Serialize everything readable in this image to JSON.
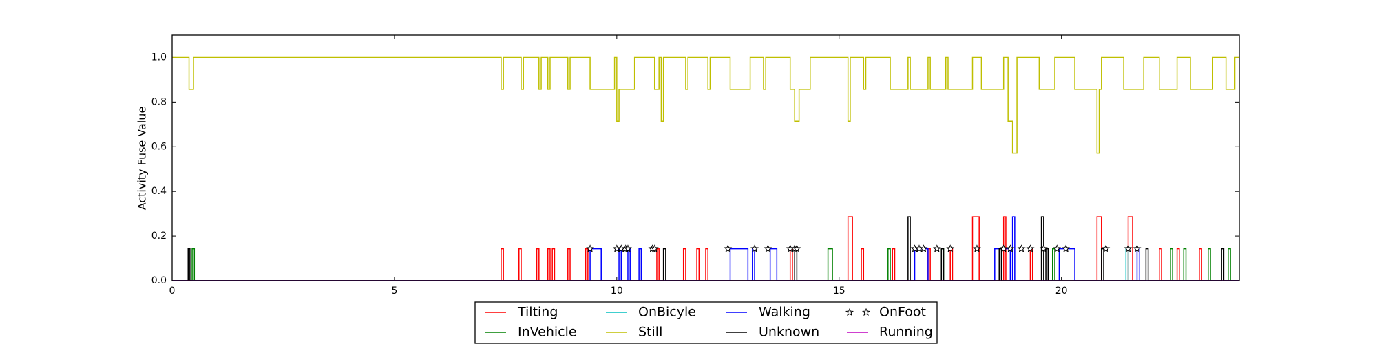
{
  "chart_data": {
    "type": "line",
    "drawstyle": "steps-post",
    "ylabel": "Activity Fuse Value",
    "xlim": [
      0,
      24
    ],
    "xticks": [
      0,
      5,
      10,
      15,
      20
    ],
    "ylim": [
      0,
      1.1
    ],
    "yticks": [
      {
        "value": 0,
        "label": "0.0"
      },
      {
        "value": 0.2,
        "label": "0.2"
      },
      {
        "value": 0.4,
        "label": "0.4"
      },
      {
        "value": 0.6,
        "label": "0.6"
      },
      {
        "value": 0.8,
        "label": "0.8"
      },
      {
        "value": 1,
        "label": "1.0"
      }
    ],
    "legend": "lower center",
    "series": [
      {
        "name": "Tilting",
        "color": "#ff0000",
        "x": [
          0,
          7.4,
          7.45,
          7.8,
          7.85,
          8.2,
          8.25,
          8.45,
          8.5,
          8.55,
          8.6,
          8.9,
          8.95,
          9.3,
          9.35,
          10.9,
          10.95,
          11.5,
          11.55,
          11.8,
          11.85,
          12.0,
          12.05,
          13.9,
          13.95,
          15.2,
          15.3,
          15.5,
          15.55,
          16.2,
          16.25,
          17.0,
          17.05,
          17.5,
          17.55,
          18.0,
          18.15,
          18.7,
          18.75,
          19.3,
          19.35,
          20.8,
          20.9,
          21.5,
          21.6,
          22.2,
          22.25,
          22.6,
          22.65,
          23.1,
          23.15,
          24
        ],
        "values": [
          0,
          0.143,
          0,
          0.143,
          0,
          0.143,
          0,
          0.143,
          0,
          0.143,
          0,
          0.143,
          0,
          0.143,
          0,
          0.143,
          0,
          0.143,
          0,
          0.143,
          0,
          0.143,
          0,
          0.143,
          0,
          0.286,
          0,
          0.143,
          0,
          0.143,
          0,
          0.143,
          0,
          0.143,
          0,
          0.286,
          0,
          0.286,
          0,
          0.143,
          0,
          0.286,
          0,
          0.286,
          0,
          0.143,
          0,
          0.143,
          0,
          0.143,
          0,
          0
        ]
      },
      {
        "name": "InVehicle",
        "color": "#008000",
        "x": [
          0,
          0.45,
          0.5,
          14.75,
          14.85,
          16.1,
          16.15,
          17.3,
          17.35,
          19.8,
          19.85,
          22.45,
          22.5,
          22.75,
          22.8,
          23.3,
          23.35,
          23.75,
          23.8,
          24
        ],
        "values": [
          0,
          0.143,
          0,
          0.143,
          0,
          0.143,
          0,
          0.143,
          0,
          0.143,
          0,
          0.143,
          0,
          0.143,
          0,
          0.143,
          0,
          0.143,
          0,
          0
        ]
      },
      {
        "name": "OnBicyle",
        "color": "#00bfbf",
        "x": [
          0,
          21.45,
          21.5,
          24
        ],
        "values": [
          0,
          0.143,
          0,
          0
        ]
      },
      {
        "name": "Still",
        "color": "#bfbf00",
        "x": [
          0,
          0.38,
          0.48,
          7.4,
          7.45,
          7.85,
          7.9,
          8.25,
          8.3,
          8.45,
          8.5,
          8.9,
          8.95,
          9.4,
          9.95,
          10.0,
          10.05,
          10.4,
          10.85,
          10.95,
          11.0,
          11.05,
          11.55,
          11.6,
          12.05,
          12.1,
          12.55,
          13.0,
          13.3,
          13.35,
          13.9,
          14.0,
          14.1,
          14.35,
          15.2,
          15.25,
          15.55,
          15.6,
          16.15,
          16.55,
          16.6,
          17.0,
          17.05,
          17.4,
          17.45,
          18.0,
          18.2,
          18.7,
          18.8,
          18.9,
          19.0,
          19.5,
          19.85,
          20.3,
          20.8,
          20.85,
          20.9,
          21.4,
          21.85,
          22.2,
          22.6,
          22.9,
          23.4,
          23.7,
          23.9,
          24
        ],
        "values": [
          1,
          0.857,
          1,
          0.857,
          1,
          0.857,
          1,
          0.857,
          1,
          0.857,
          1,
          0.857,
          1,
          0.857,
          1,
          0.714,
          0.857,
          1,
          0.857,
          1,
          0.714,
          1,
          0.857,
          1,
          0.857,
          1,
          0.857,
          1,
          0.857,
          1,
          0.857,
          0.714,
          0.857,
          1,
          0.714,
          1,
          0.857,
          1,
          0.857,
          1,
          0.857,
          1,
          0.857,
          1,
          0.857,
          1,
          0.857,
          1,
          0.714,
          0.571,
          1,
          0.857,
          1,
          0.857,
          0.571,
          0.857,
          1,
          0.857,
          1,
          0.857,
          1,
          0.857,
          1,
          0.857,
          1,
          1
        ]
      },
      {
        "name": "Walking",
        "color": "#0000ff",
        "x": [
          0,
          9.4,
          9.65,
          10.05,
          10.1,
          10.25,
          10.3,
          10.5,
          10.55,
          12.55,
          12.95,
          13.05,
          13.1,
          13.45,
          13.6,
          16.7,
          17.0,
          18.5,
          18.85,
          18.9,
          18.95,
          19.95,
          20.3,
          21.7,
          21.75,
          24
        ],
        "values": [
          0,
          0.143,
          0,
          0.143,
          0,
          0.143,
          0,
          0.143,
          0,
          0.143,
          0,
          0.143,
          0,
          0.143,
          0,
          0.143,
          0,
          0.143,
          0,
          0.286,
          0,
          0.143,
          0,
          0.143,
          0,
          0
        ]
      },
      {
        "name": "Unknown",
        "color": "#000000",
        "x": [
          0,
          0.36,
          0.4,
          11.05,
          11.1,
          14.0,
          14.05,
          16.55,
          16.6,
          17.3,
          17.35,
          18.6,
          18.65,
          19.55,
          19.6,
          19.65,
          19.7,
          20.9,
          20.95,
          21.9,
          21.95,
          23.6,
          23.65,
          24
        ],
        "values": [
          0,
          0.143,
          0,
          0.143,
          0,
          0.143,
          0,
          0.286,
          0,
          0.143,
          0,
          0.143,
          0,
          0.286,
          0,
          0.143,
          0,
          0.143,
          0,
          0.143,
          0,
          0.143,
          0,
          0
        ]
      },
      {
        "name": "OnFoot",
        "color": "#000000",
        "marker": "star",
        "x": [
          9.4,
          10.0,
          10.1,
          10.2,
          10.25,
          10.8,
          10.85,
          12.5,
          13.1,
          13.4,
          13.9,
          14.0,
          14.05,
          16.7,
          16.8,
          16.9,
          17.2,
          17.5,
          18.1,
          18.7,
          18.85,
          19.1,
          19.3,
          19.6,
          19.9,
          20.1,
          21.0,
          21.5,
          21.7
        ],
        "values": [
          0.143,
          0.143,
          0.143,
          0.143,
          0.143,
          0.143,
          0.143,
          0.143,
          0.143,
          0.143,
          0.143,
          0.143,
          0.143,
          0.143,
          0.143,
          0.143,
          0.143,
          0.143,
          0.143,
          0.143,
          0.143,
          0.143,
          0.143,
          0.143,
          0.143,
          0.143,
          0.143,
          0.143,
          0.143
        ]
      },
      {
        "name": "Running",
        "color": "#bf00bf",
        "x": [
          0,
          24
        ],
        "values": [
          0,
          0
        ]
      }
    ]
  }
}
